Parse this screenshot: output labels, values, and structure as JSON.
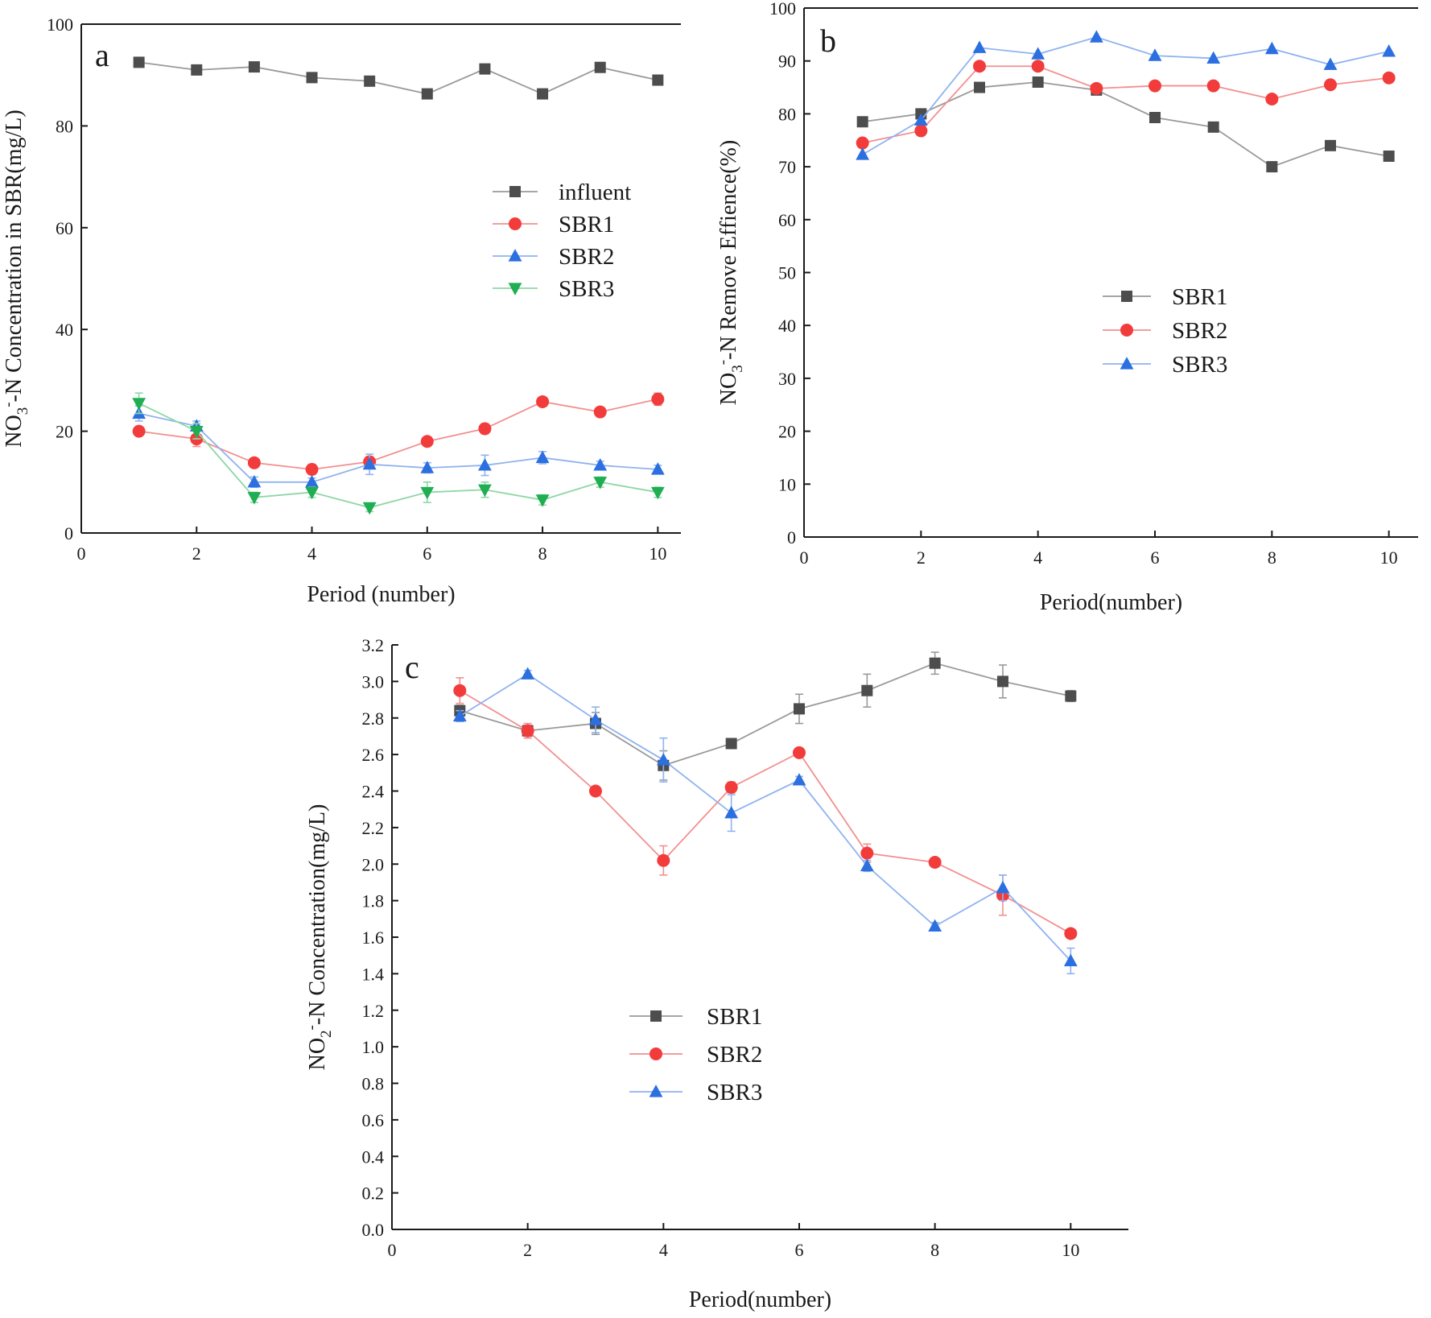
{
  "figure": {
    "colors": {
      "influent": "#4d4d4d",
      "red": "#f23c3c",
      "blue": "#2b6fe0",
      "green": "#1fae52",
      "frame": "#1a1a1a",
      "line_gray": "#9a9a9a",
      "line_red": "#f38f8f",
      "line_blue": "#8fb3ef",
      "line_green": "#8fd6a6"
    }
  },
  "chart_data": [
    {
      "id": "a",
      "panel_label": "a",
      "type": "line",
      "title": "",
      "xlabel": "Period (number)",
      "ylabel_parts": [
        "NO",
        "3",
        "-",
        "-N Concentration in SBR(mg/L)"
      ],
      "xlim": [
        0,
        10.4
      ],
      "ylim": [
        0,
        100
      ],
      "xticks": [
        0,
        2,
        4,
        6,
        8,
        10
      ],
      "yticks": [
        0,
        20,
        40,
        60,
        80,
        100
      ],
      "x": [
        1,
        2,
        3,
        4,
        5,
        6,
        7,
        8,
        9,
        10
      ],
      "legend_position": "center-right",
      "series": [
        {
          "name": "influent",
          "marker": "square",
          "color_key": "influent",
          "line_key": "line_gray",
          "values": [
            92.5,
            91.0,
            91.6,
            89.5,
            88.8,
            86.3,
            91.2,
            86.3,
            91.5,
            89.0
          ],
          "errors": [
            0,
            0,
            0,
            0,
            0,
            0,
            0,
            0,
            0,
            0
          ]
        },
        {
          "name": "SBR1",
          "marker": "circle",
          "color_key": "red",
          "line_key": "line_red",
          "values": [
            20.0,
            18.5,
            13.8,
            12.5,
            14.0,
            18.0,
            20.5,
            25.8,
            23.8,
            26.3
          ],
          "errors": [
            0.8,
            1.5,
            0.8,
            1.0,
            1.0,
            0.8,
            1.0,
            0.8,
            0.8,
            1.2
          ]
        },
        {
          "name": "SBR2",
          "marker": "triangle-up",
          "color_key": "blue",
          "line_key": "line_blue",
          "values": [
            23.5,
            21.0,
            10.0,
            10.0,
            13.5,
            12.8,
            13.3,
            14.8,
            13.3,
            12.5
          ],
          "errors": [
            1.5,
            1.0,
            1.0,
            0.8,
            2.0,
            1.0,
            2.0,
            1.2,
            0.8,
            0.8
          ]
        },
        {
          "name": "SBR3",
          "marker": "triangle-down",
          "color_key": "green",
          "line_key": "line_green",
          "values": [
            25.5,
            20.0,
            7.0,
            8.0,
            5.0,
            8.0,
            8.5,
            6.5,
            10.0,
            8.0
          ],
          "errors": [
            2.0,
            1.5,
            1.0,
            1.0,
            0.8,
            2.0,
            1.5,
            1.0,
            1.0,
            1.0
          ]
        }
      ]
    },
    {
      "id": "b",
      "panel_label": "b",
      "type": "line",
      "title": "",
      "xlabel": "Period(number)",
      "ylabel_parts": [
        "NO",
        "3",
        "-",
        "-N Remove Effience(%)"
      ],
      "xlim": [
        0,
        10.5
      ],
      "ylim": [
        0,
        100
      ],
      "xticks": [
        0,
        2,
        4,
        6,
        8,
        10
      ],
      "yticks": [
        0,
        10,
        20,
        30,
        40,
        50,
        60,
        70,
        80,
        90,
        100
      ],
      "x": [
        1,
        2,
        3,
        4,
        5,
        6,
        7,
        8,
        9,
        10
      ],
      "legend_position": "center",
      "series": [
        {
          "name": "SBR1",
          "marker": "square",
          "color_key": "influent",
          "line_key": "line_gray",
          "values": [
            78.5,
            80.0,
            85.0,
            86.0,
            84.5,
            79.3,
            77.5,
            70.0,
            74.0,
            72.0
          ],
          "errors": [
            0,
            0,
            0,
            0,
            0,
            0,
            0,
            0,
            0,
            0
          ]
        },
        {
          "name": "SBR2",
          "marker": "circle",
          "color_key": "red",
          "line_key": "line_red",
          "values": [
            74.5,
            76.8,
            89.0,
            89.0,
            84.8,
            85.3,
            85.3,
            82.8,
            85.5,
            86.8
          ],
          "errors": [
            0,
            0,
            0,
            0,
            0,
            0,
            0,
            0,
            0,
            0
          ]
        },
        {
          "name": "SBR3",
          "marker": "triangle-up",
          "color_key": "blue",
          "line_key": "line_blue",
          "values": [
            72.3,
            78.8,
            92.5,
            91.3,
            94.5,
            91.0,
            90.5,
            92.3,
            89.3,
            91.8
          ],
          "errors": [
            0,
            0,
            0,
            0,
            0,
            0,
            0,
            0,
            0,
            0
          ]
        }
      ]
    },
    {
      "id": "c",
      "panel_label": "c",
      "type": "line",
      "title": "",
      "xlabel": "Period(number)",
      "ylabel_parts": [
        "NO",
        "2",
        "-",
        "-N Concentration(mg/L)"
      ],
      "xlim": [
        0,
        10.85
      ],
      "ylim": [
        0,
        3.2
      ],
      "xticks": [
        0,
        2,
        4,
        6,
        8,
        10
      ],
      "yticks": [
        0.0,
        0.2,
        0.4,
        0.6,
        0.8,
        1.0,
        1.2,
        1.4,
        1.6,
        1.8,
        2.0,
        2.2,
        2.4,
        2.6,
        2.8,
        3.0,
        3.2
      ],
      "ytick_decimals": 1,
      "x": [
        1,
        2,
        3,
        4,
        5,
        6,
        7,
        8,
        9,
        10
      ],
      "legend_position": "lower-left",
      "series": [
        {
          "name": "SBR1",
          "marker": "square",
          "color_key": "influent",
          "line_key": "line_gray",
          "values": [
            2.84,
            2.73,
            2.77,
            2.54,
            2.66,
            2.85,
            2.95,
            3.1,
            3.0,
            2.92
          ],
          "errors": [
            0.03,
            0.03,
            0.06,
            0.08,
            0.02,
            0.08,
            0.09,
            0.06,
            0.09,
            0.03
          ]
        },
        {
          "name": "SBR2",
          "marker": "circle",
          "color_key": "red",
          "line_key": "line_red",
          "values": [
            2.95,
            2.73,
            2.4,
            2.02,
            2.42,
            2.61,
            2.06,
            2.01,
            1.83,
            1.62
          ],
          "errors": [
            0.07,
            0.04,
            0.02,
            0.08,
            0.03,
            0.02,
            0.05,
            0.02,
            0.11,
            0.02
          ]
        },
        {
          "name": "SBR3",
          "marker": "triangle-up",
          "color_key": "blue",
          "line_key": "line_blue",
          "values": [
            2.81,
            3.04,
            2.79,
            2.57,
            2.28,
            2.46,
            1.99,
            1.66,
            1.87,
            1.47
          ],
          "errors": [
            0.03,
            0.02,
            0.07,
            0.12,
            0.1,
            0.02,
            0.03,
            0.02,
            0.07,
            0.07
          ]
        }
      ]
    }
  ]
}
